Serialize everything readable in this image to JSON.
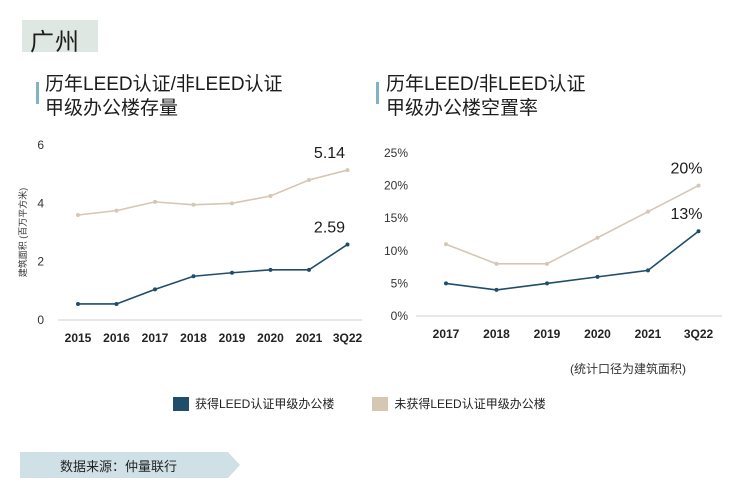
{
  "city": "广州",
  "source": "数据来源：仲量联行",
  "note": "(统计口径为建筑面积)",
  "colors": {
    "leed": "#1e4e6a",
    "non_leed": "#d6c6b4",
    "accent": "#7fb4c2",
    "tag": "#dfe7e3"
  },
  "legend": {
    "leed": "获得LEED认证甲级办公楼",
    "non_leed": "未获得LEED认证甲级办公楼"
  },
  "chart_data": [
    {
      "type": "line",
      "title": [
        "历年LEED认证/非LEED认证",
        "甲级办公楼存量"
      ],
      "ylabel": "建筑面积 (百万平方米)",
      "ylim": [
        0,
        6
      ],
      "yticks": [
        "0",
        "2",
        "4",
        "6"
      ],
      "categories": [
        "2015",
        "2016",
        "2017",
        "2018",
        "2019",
        "2020",
        "2021",
        "3Q22"
      ],
      "series": [
        {
          "name": "获得LEED认证甲级办公楼",
          "values": [
            0.55,
            0.55,
            1.05,
            1.5,
            1.62,
            1.72,
            1.72,
            2.59
          ]
        },
        {
          "name": "未获得LEED认证甲级办公楼",
          "values": [
            3.6,
            3.75,
            4.05,
            3.95,
            4.0,
            4.25,
            4.8,
            5.14
          ]
        }
      ],
      "annotations": [
        "2.59",
        "5.14"
      ]
    },
    {
      "type": "line",
      "title": [
        "历年LEED/非LEED认证",
        "甲级办公楼空置率"
      ],
      "ylim": [
        0,
        25
      ],
      "yticks": [
        "0%",
        "5%",
        "10%",
        "15%",
        "20%",
        "25%"
      ],
      "categories": [
        "2017",
        "2018",
        "2019",
        "2020",
        "2021",
        "3Q22"
      ],
      "series": [
        {
          "name": "获得LEED认证甲级办公楼",
          "values": [
            5,
            4,
            5,
            6,
            7,
            13
          ]
        },
        {
          "name": "未获得LEED认证甲级办公楼",
          "values": [
            11,
            8,
            8,
            12,
            16,
            20
          ]
        }
      ],
      "annotations": [
        "13%",
        "20%"
      ]
    }
  ]
}
